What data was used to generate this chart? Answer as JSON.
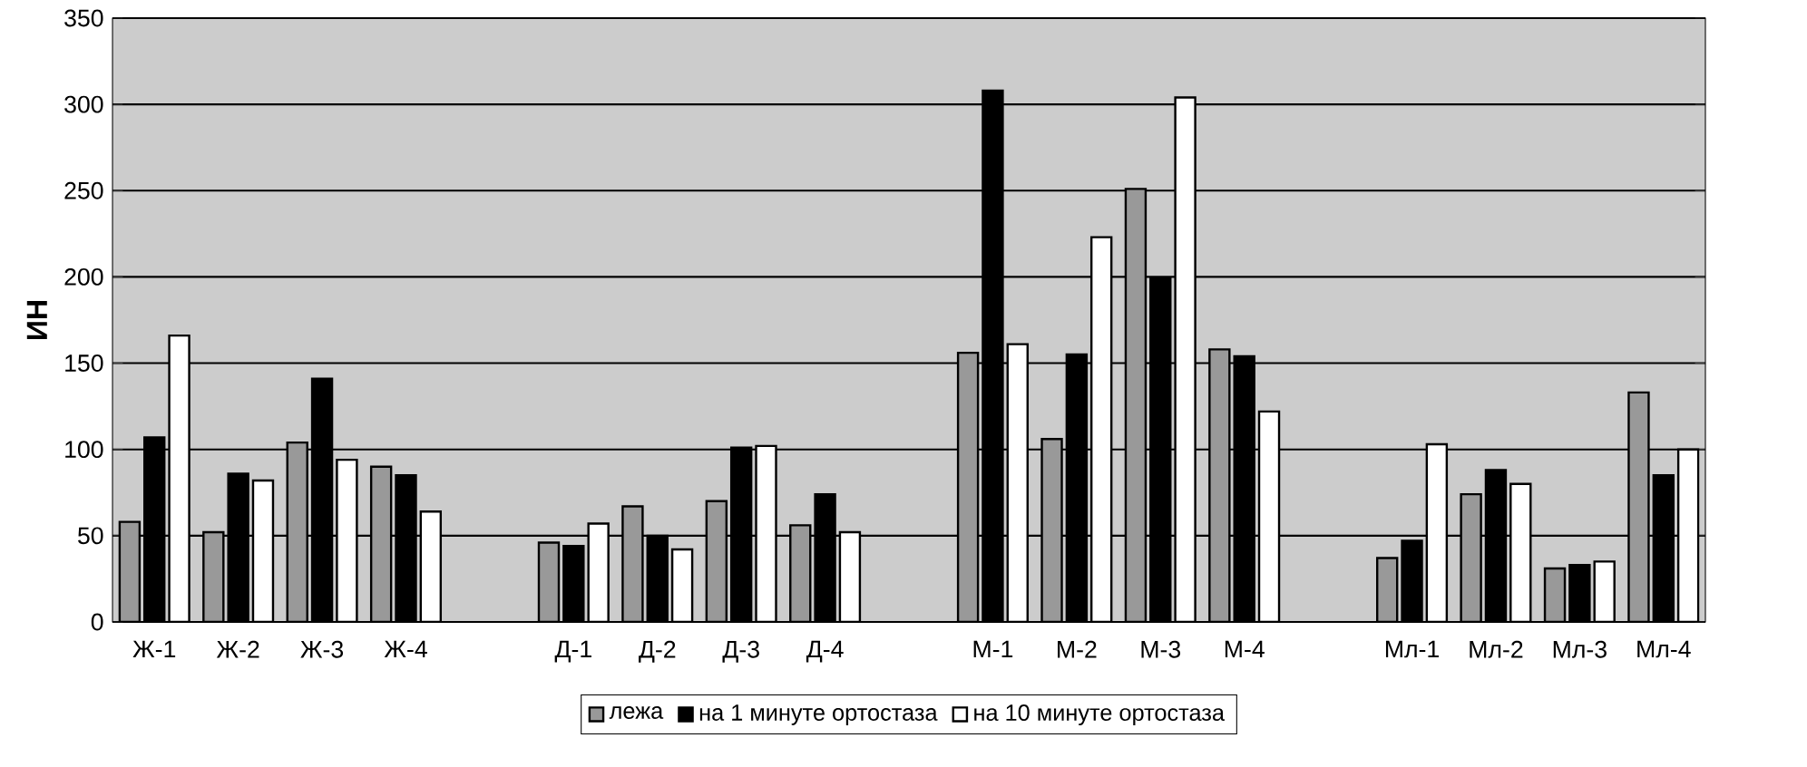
{
  "chart_data": {
    "type": "bar",
    "ylabel": "ИН",
    "categories": [
      "Ж-1",
      "Ж-2",
      "Ж-3",
      "Ж-4",
      null,
      "Д-1",
      "Д-2",
      "Д-3",
      "Д-4",
      null,
      "М-1",
      "М-2",
      "М-3",
      "М-4",
      null,
      "Мл-1",
      "Мл-2",
      "Мл-3",
      "Мл-4"
    ],
    "series": [
      {
        "name": "лежа",
        "color": "#999999",
        "values": [
          58,
          52,
          104,
          90,
          null,
          46,
          67,
          70,
          56,
          null,
          156,
          106,
          251,
          158,
          null,
          37,
          74,
          31,
          133
        ]
      },
      {
        "name": "на 1 минуте ортостаза",
        "color": "#000000",
        "values": [
          107,
          86,
          141,
          85,
          null,
          44,
          50,
          101,
          74,
          null,
          308,
          155,
          199,
          154,
          null,
          47,
          88,
          33,
          85
        ]
      },
      {
        "name": "на 10 минуте ортостаза",
        "color": "#ffffff",
        "values": [
          166,
          82,
          94,
          64,
          null,
          57,
          42,
          102,
          52,
          null,
          161,
          223,
          304,
          122,
          null,
          103,
          80,
          35,
          100
        ]
      }
    ],
    "ylim": [
      0,
      350
    ],
    "yticks": [
      0,
      50,
      100,
      150,
      200,
      250,
      300,
      350
    ],
    "grid": "y",
    "legend": "bottom"
  }
}
